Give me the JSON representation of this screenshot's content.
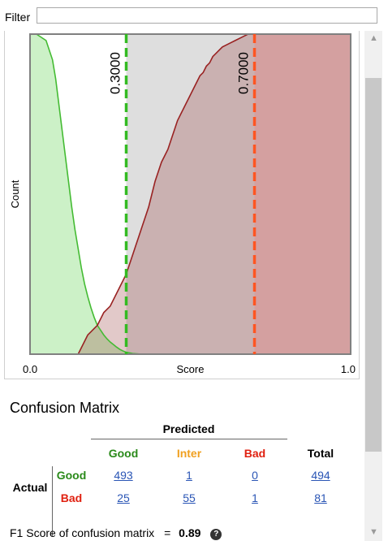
{
  "filter": {
    "label": "Filter",
    "value": ""
  },
  "chart_data": {
    "type": "area",
    "xlabel": "Score",
    "ylabel": "Count",
    "x_tick_labels": [
      "0.0",
      "1.0"
    ],
    "xlim": [
      0,
      1
    ],
    "ylim": [
      0,
      1
    ],
    "thresholds": [
      {
        "value": 0.3,
        "label": "0.3000",
        "color": "#33bb22"
      },
      {
        "value": 0.7,
        "label": "0.7000",
        "color": "#ff5522"
      }
    ],
    "series": [
      {
        "color": "#44bb33",
        "x": [
          0.0,
          0.02,
          0.05,
          0.07,
          0.08,
          0.09,
          0.1,
          0.11,
          0.12,
          0.13,
          0.14,
          0.15,
          0.16,
          0.17,
          0.18,
          0.19,
          0.2,
          0.21,
          0.22,
          0.23,
          0.24,
          0.25,
          0.26,
          0.27,
          0.28,
          0.29,
          0.3,
          0.32,
          0.35
        ],
        "y": [
          1.0,
          1.0,
          0.98,
          0.92,
          0.86,
          0.78,
          0.7,
          0.62,
          0.54,
          0.46,
          0.39,
          0.33,
          0.27,
          0.22,
          0.18,
          0.145,
          0.115,
          0.09,
          0.075,
          0.06,
          0.048,
          0.038,
          0.03,
          0.022,
          0.015,
          0.01,
          0.006,
          0.002,
          0.0
        ]
      },
      {
        "color": "#992222",
        "x": [
          0.15,
          0.16,
          0.17,
          0.18,
          0.19,
          0.2,
          0.21,
          0.22,
          0.23,
          0.24,
          0.25,
          0.26,
          0.27,
          0.28,
          0.29,
          0.3,
          0.31,
          0.32,
          0.33,
          0.34,
          0.35,
          0.36,
          0.37,
          0.38,
          0.39,
          0.4,
          0.41,
          0.42,
          0.43,
          0.44,
          0.45,
          0.46,
          0.47,
          0.48,
          0.49,
          0.5,
          0.51,
          0.52,
          0.53,
          0.54,
          0.55,
          0.56,
          0.57,
          0.58,
          0.59,
          0.6,
          0.62,
          0.64,
          0.66,
          0.68,
          0.7
        ],
        "y": [
          0.0,
          0.02,
          0.04,
          0.06,
          0.07,
          0.08,
          0.09,
          0.11,
          0.13,
          0.14,
          0.15,
          0.17,
          0.19,
          0.21,
          0.23,
          0.25,
          0.28,
          0.31,
          0.34,
          0.37,
          0.4,
          0.43,
          0.46,
          0.5,
          0.54,
          0.57,
          0.6,
          0.62,
          0.64,
          0.67,
          0.7,
          0.73,
          0.75,
          0.77,
          0.79,
          0.81,
          0.83,
          0.85,
          0.87,
          0.88,
          0.9,
          0.91,
          0.93,
          0.94,
          0.95,
          0.96,
          0.97,
          0.98,
          0.99,
          1.0,
          1.0
        ]
      }
    ]
  },
  "confusion_matrix": {
    "title": "Confusion Matrix",
    "predicted_label": "Predicted",
    "actual_label": "Actual",
    "col_headers": [
      "Good",
      "Inter",
      "Bad",
      "Total"
    ],
    "rows": [
      {
        "label": "Good",
        "values": [
          "493",
          "1",
          "0",
          "494"
        ]
      },
      {
        "label": "Bad",
        "values": [
          "25",
          "55",
          "1",
          "81"
        ]
      }
    ]
  },
  "f1": {
    "label": "F1 Score of confusion matrix",
    "equals": "=",
    "value": "0.89",
    "help_icon": "?"
  },
  "icons": {
    "scroll_up": "chevron-up-icon",
    "scroll_down": "chevron-down-icon",
    "help": "question-circle-icon"
  }
}
